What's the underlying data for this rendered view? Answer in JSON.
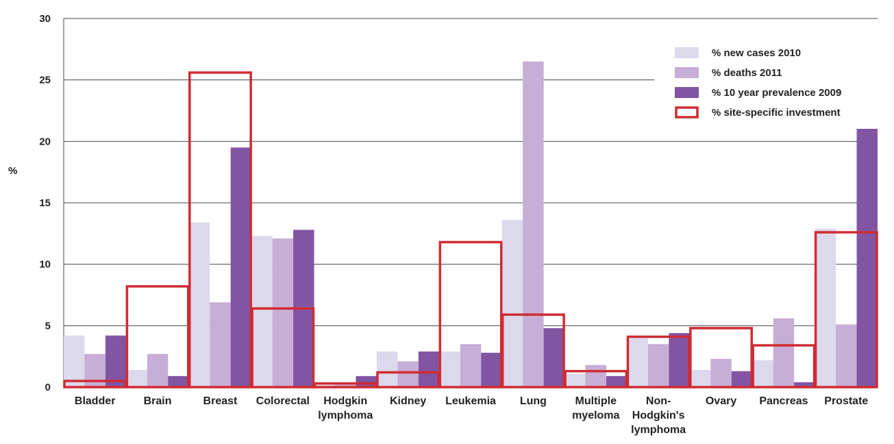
{
  "chart_data": {
    "type": "bar",
    "title": "",
    "xlabel": "",
    "ylabel": "%",
    "ylim": [
      0,
      30
    ],
    "yticks": [
      0,
      5,
      10,
      15,
      20,
      25,
      30
    ],
    "grid": true,
    "legend_position": "top-right",
    "categories": [
      [
        "Bladder"
      ],
      [
        "Brain"
      ],
      [
        "Breast"
      ],
      [
        "Colorectal"
      ],
      [
        "Hodgkin",
        "lymphoma"
      ],
      [
        "Kidney"
      ],
      [
        "Leukemia"
      ],
      [
        "Lung"
      ],
      [
        "Multiple",
        "myeloma"
      ],
      [
        "Non-",
        "Hodgkin's",
        "lymphoma"
      ],
      [
        "Ovary"
      ],
      [
        "Pancreas"
      ],
      [
        "Prostate"
      ]
    ],
    "series": [
      {
        "name": "% new cases 2010",
        "color": "#dcd9ec",
        "values": [
          4.2,
          1.4,
          13.4,
          12.3,
          0.2,
          2.9,
          2.9,
          13.6,
          1.1,
          4.0,
          1.4,
          2.2,
          12.9
        ]
      },
      {
        "name": "% deaths 2011",
        "color": "#c7aed6",
        "values": [
          2.7,
          2.7,
          6.9,
          12.1,
          0.2,
          2.1,
          3.5,
          26.5,
          1.8,
          3.5,
          2.3,
          5.6,
          5.1
        ]
      },
      {
        "name": "% 10 year prevalence 2009",
        "color": "#8255a3",
        "values": [
          4.2,
          0.9,
          19.5,
          12.8,
          0.9,
          2.9,
          2.8,
          4.8,
          0.9,
          4.4,
          1.3,
          0.4,
          21.7
        ]
      },
      {
        "name": "% site-specific investment",
        "color": "#d02b32",
        "style": "outline",
        "values": [
          0.5,
          8.2,
          25.6,
          6.4,
          0.3,
          1.2,
          11.8,
          5.9,
          1.3,
          4.1,
          4.8,
          3.4,
          12.6
        ]
      }
    ]
  }
}
